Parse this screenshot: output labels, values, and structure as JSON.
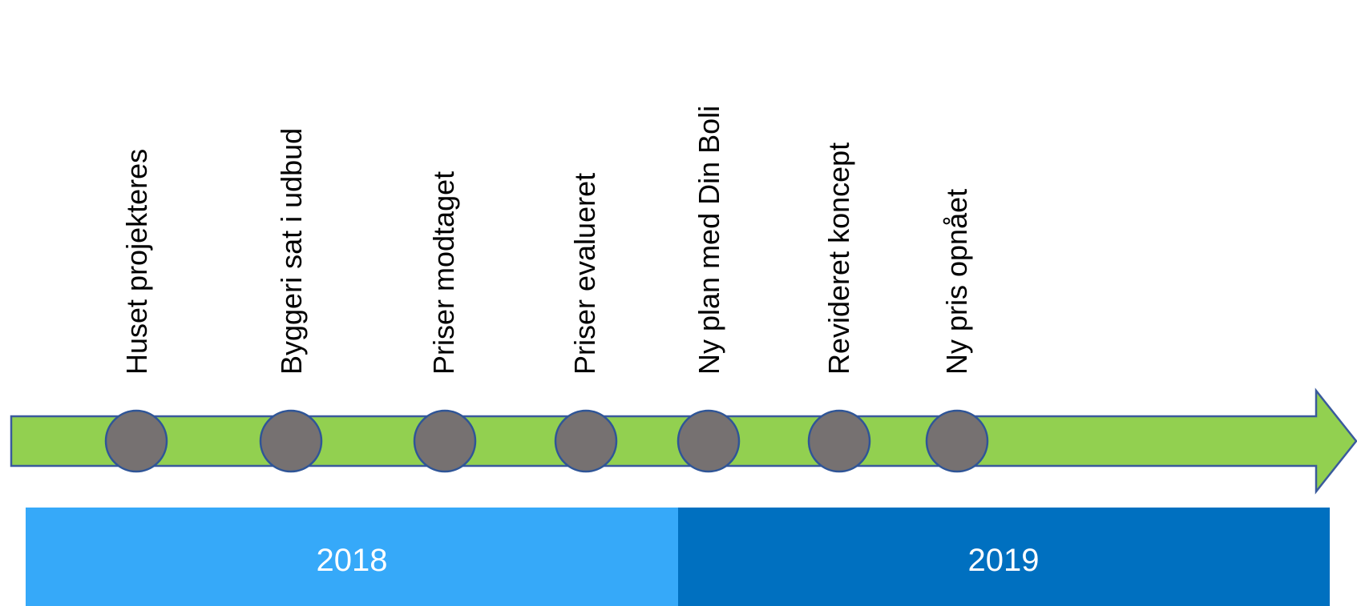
{
  "colors": {
    "arrow_fill": "#92d050",
    "arrow_stroke": "#3a5a9c",
    "marker_fill": "#767171",
    "marker_stroke": "#2f5597",
    "year_2018": "#36a9f9",
    "year_2019": "#0070c0",
    "year_text": "#ffffff"
  },
  "milestones": [
    {
      "label": "Huset projekteres"
    },
    {
      "label": "Byggeri sat i udbud"
    },
    {
      "label": "Priser modtaget"
    },
    {
      "label": "Priser evalueret"
    },
    {
      "label": "Ny plan med Din Boli"
    },
    {
      "label": "Revideret koncept"
    },
    {
      "label": "Ny pris opnået"
    }
  ],
  "years": [
    {
      "label": "2018"
    },
    {
      "label": "2019"
    }
  ]
}
